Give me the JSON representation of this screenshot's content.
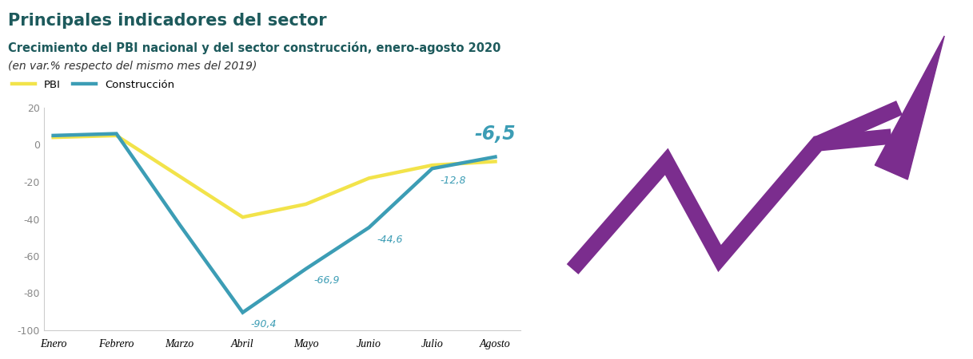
{
  "chart_data": {
    "type": "line",
    "title": "Principales indicadores del sector",
    "subtitle": "Crecimiento del PBI nacional y del sector construcción, enero-agosto 2020",
    "note": "(en var.% respecto del mismo mes del 2019)",
    "categories": [
      "Enero",
      "Febrero",
      "Marzo",
      "Abril",
      "Mayo",
      "Junio",
      "Julio",
      "Agosto"
    ],
    "series": [
      {
        "name": "PBI",
        "color": "#f2e34a",
        "values": [
          4,
          5,
          -17,
          -39,
          -32,
          -18,
          -11,
          -9
        ]
      },
      {
        "name": "Construcción",
        "color": "#3c9db5",
        "values": [
          5,
          6,
          -43,
          -90.4,
          -66.9,
          -44.6,
          -12.8,
          -6.5
        ],
        "data_labels": true,
        "value_labels": [
          null,
          null,
          null,
          "-90,4",
          "-66,9",
          "-44,6",
          "-12,8",
          "-6,5"
        ]
      }
    ],
    "ylim": [
      -100,
      20
    ],
    "yticks": [
      20,
      0,
      -20,
      -40,
      -60,
      -80,
      -100
    ],
    "grid": false,
    "legend": "upper left"
  }
}
